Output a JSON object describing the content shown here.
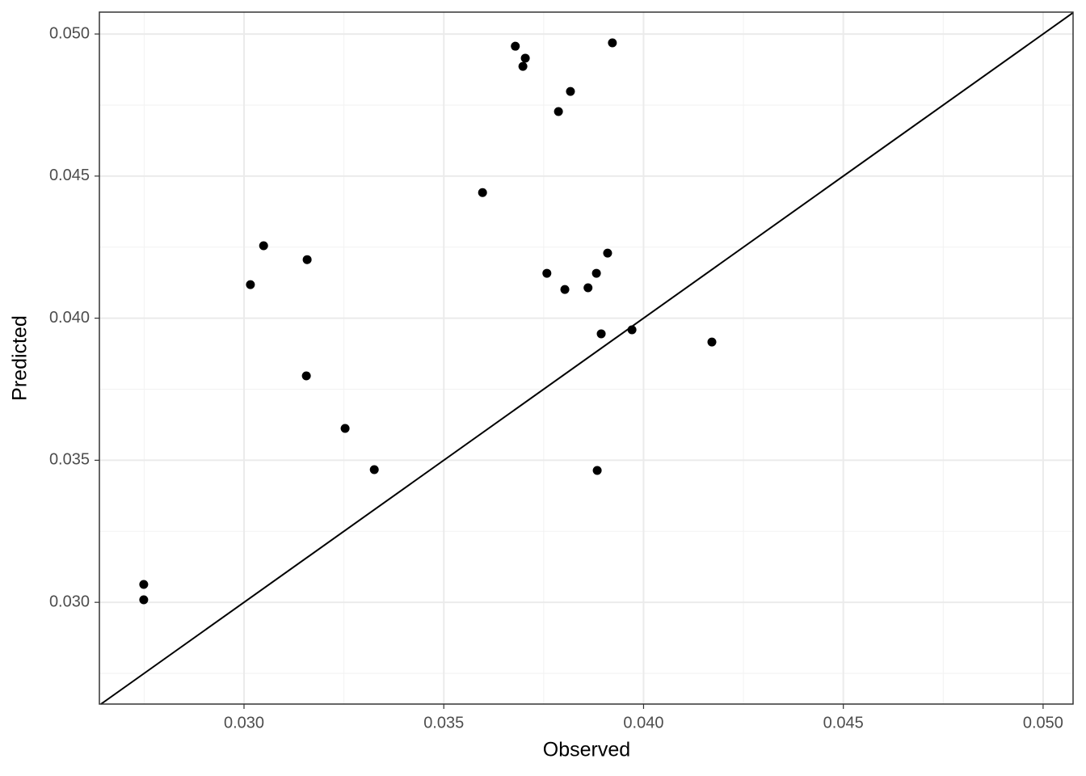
{
  "chart_data": {
    "type": "scatter",
    "x_label": "Observed",
    "y_label": "Predicted",
    "color": "#000000",
    "x": [
      0.02749,
      0.02749,
      0.03016,
      0.03049,
      0.03158,
      0.03156,
      0.03253,
      0.03326,
      0.03597,
      0.03679,
      0.03698,
      0.03704,
      0.03922,
      0.03817,
      0.03787,
      0.03758,
      0.03803,
      0.03861,
      0.03882,
      0.0391,
      0.03894,
      0.03971,
      0.04171,
      0.03884
    ],
    "values": [
      0.03063,
      0.03009,
      0.04118,
      0.04255,
      0.04206,
      0.03797,
      0.03612,
      0.03467,
      0.04442,
      0.04957,
      0.04886,
      0.04915,
      0.04969,
      0.04798,
      0.04727,
      0.04158,
      0.04101,
      0.04107,
      0.04158,
      0.04229,
      0.03945,
      0.03959,
      0.03916,
      0.03464
    ],
    "xlim": [
      0.02638,
      0.05075
    ],
    "ylim": [
      0.02642,
      0.05077
    ],
    "xticks": [
      {
        "value": 0.03,
        "label": "0.030"
      },
      {
        "value": 0.035,
        "label": "0.035"
      },
      {
        "value": 0.04,
        "label": "0.040"
      },
      {
        "value": 0.045,
        "label": "0.045"
      },
      {
        "value": 0.05,
        "label": "0.050"
      }
    ],
    "yticks": [
      {
        "value": 0.03,
        "label": "0.030"
      },
      {
        "value": 0.035,
        "label": "0.035"
      },
      {
        "value": 0.04,
        "label": "0.040"
      },
      {
        "value": 0.045,
        "label": "0.045"
      },
      {
        "value": 0.05,
        "label": "0.050"
      }
    ],
    "grid": true,
    "minor_grid": true,
    "identity_line": true
  }
}
